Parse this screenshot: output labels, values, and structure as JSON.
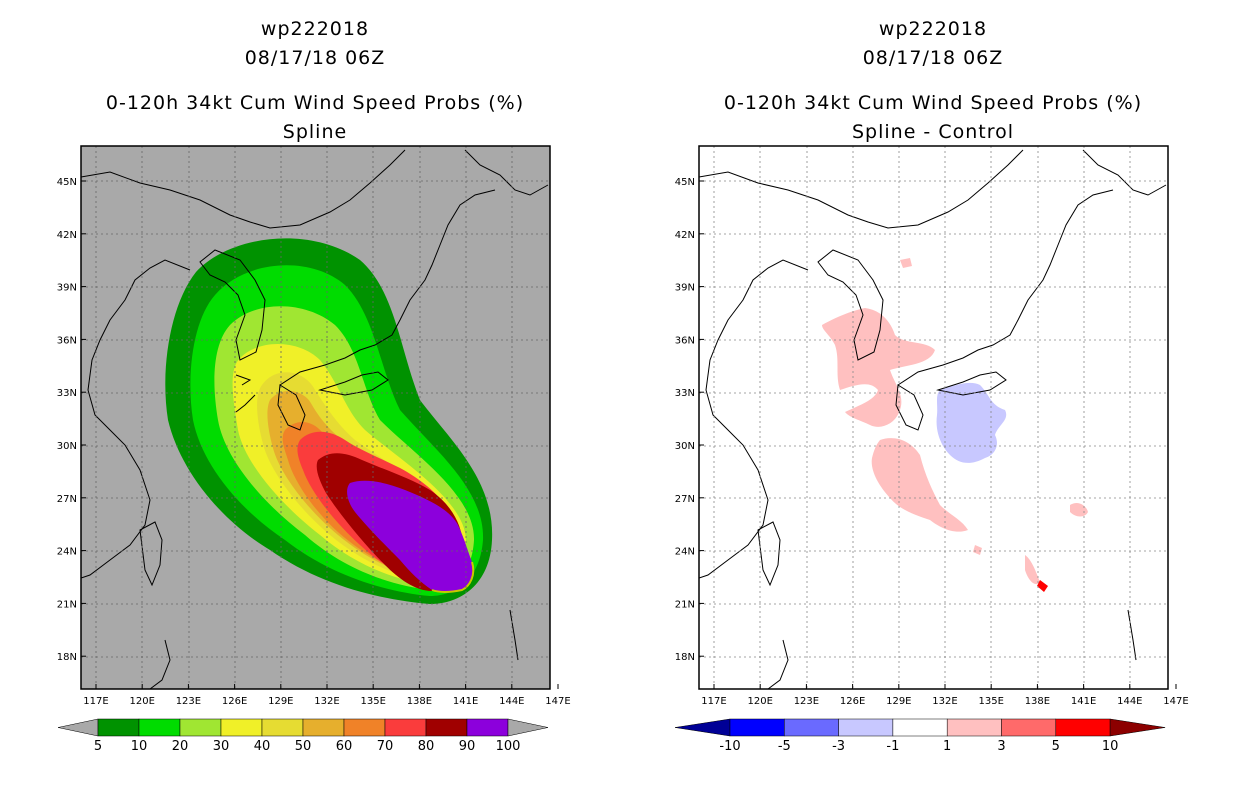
{
  "panels": [
    {
      "id": "left",
      "header": {
        "storm_id": "wp222018",
        "datetime": "08/17/18 06Z",
        "product": "0-120h 34kt Cum Wind Speed Probs (%)",
        "subtitle": "Spline"
      },
      "background_color": "#a9a9a9",
      "lat_labels": [
        "45N",
        "42N",
        "39N",
        "36N",
        "33N",
        "30N",
        "27N",
        "24N",
        "21N",
        "18N"
      ],
      "lon_labels": [
        "117E",
        "120E",
        "123E",
        "126E",
        "129E",
        "132E",
        "135E",
        "138E",
        "141E",
        "144E",
        "147E"
      ],
      "colorbar": {
        "labels": [
          "5",
          "10",
          "20",
          "30",
          "40",
          "50",
          "60",
          "70",
          "80",
          "90",
          "100"
        ],
        "colors": [
          "#009200",
          "#00dc00",
          "#a0e632",
          "#f0f028",
          "#e6dc32",
          "#e6af2d",
          "#f08228",
          "#fa3c3c",
          "#a00000",
          "#8c00dc"
        ],
        "end_color": "#a9a9a9"
      }
    },
    {
      "id": "right",
      "header": {
        "storm_id": "wp222018",
        "datetime": "08/17/18 06Z",
        "product": "0-120h 34kt Cum Wind Speed Probs (%)",
        "subtitle": "Spline - Control"
      },
      "background_color": "#ffffff",
      "lat_labels": [
        "45N",
        "42N",
        "39N",
        "36N",
        "33N",
        "30N",
        "27N",
        "24N",
        "21N",
        "18N"
      ],
      "lon_labels": [
        "117E",
        "120E",
        "123E",
        "126E",
        "129E",
        "132E",
        "135E",
        "138E",
        "141E",
        "144E",
        "147E"
      ],
      "colorbar": {
        "labels": [
          "-10",
          "-5",
          "-3",
          "-1",
          "1",
          "3",
          "5",
          "10"
        ],
        "colors": [
          "#0000ff",
          "#6a6aff",
          "#c8c8ff",
          "#ffffff",
          "#ffc0c0",
          "#ff6a6a",
          "#ff0000"
        ],
        "low_end_color": "#000096",
        "high_end_color": "#8c0000"
      }
    }
  ]
}
